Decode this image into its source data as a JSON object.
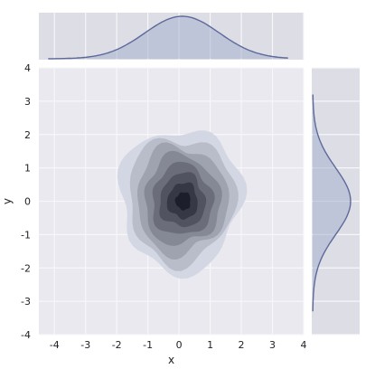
{
  "chart_data": {
    "type": "kde-jointplot",
    "grid": true,
    "style": "seaborn-darkgrid",
    "xlabel": "x",
    "ylabel": "y",
    "xlim": [
      -4.5,
      4
    ],
    "ylim": [
      -4,
      4
    ],
    "xticks": [
      -4,
      -3,
      -2,
      -1,
      0,
      1,
      2,
      3,
      4
    ],
    "yticks": [
      -4,
      -3,
      -2,
      -1,
      0,
      1,
      2,
      3,
      4
    ],
    "joint": {
      "kind": "filled-contour",
      "center": [
        0.15,
        0.0
      ],
      "levels": 8,
      "outer_extent": {
        "x": [
          -1.9,
          2.0
        ],
        "y": [
          -2.1,
          2.2
        ]
      }
    },
    "marginal_x": {
      "kind": "kde",
      "peak_x": 0.1,
      "range": [
        -4.2,
        3.5
      ]
    },
    "marginal_y": {
      "kind": "kde",
      "peak_y": 0.0,
      "range": [
        -3.3,
        3.2
      ]
    },
    "colors": {
      "background": "#e9e9ef",
      "marginal_background": "#dcdde5",
      "panel_edge": "#cfd0d8",
      "grid": "#f7f7fa",
      "line": "#5d6a9a",
      "fill": "#a8b1cd",
      "contour_light": "#d3d7e3",
      "contour_dark": "#1d1e2c"
    }
  }
}
